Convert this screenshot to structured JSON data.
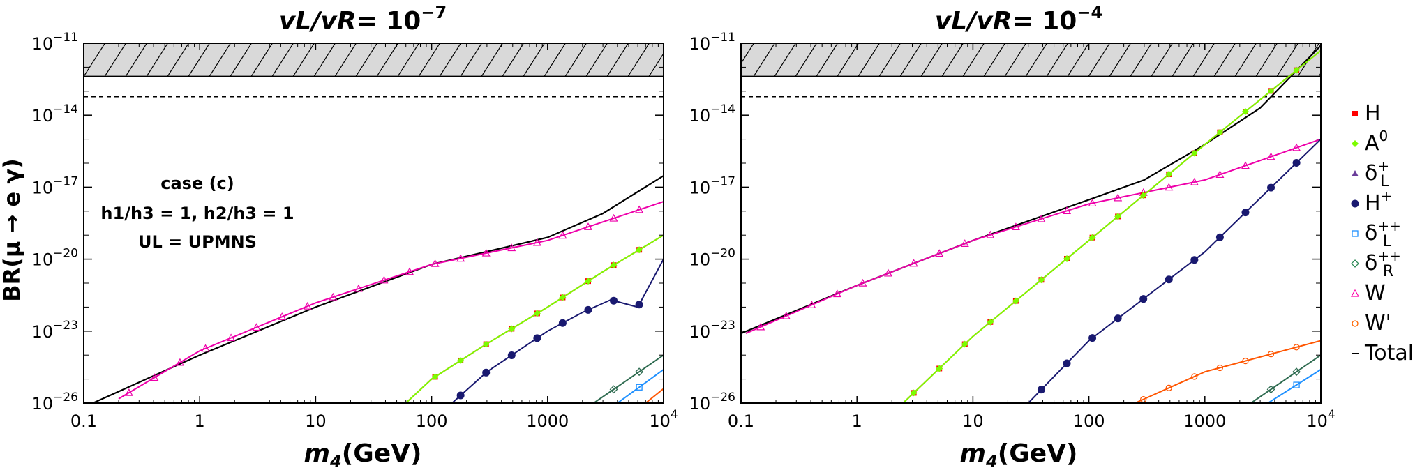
{
  "figure": {
    "ylabel": "BR(μ → e γ)",
    "xlabel_var": "m",
    "xlabel_sub": "4",
    "xlabel_unit": "(GeV)"
  },
  "annotation": {
    "line1": "case (c)",
    "line2": "h1/h3 = 1, h2/h3 = 1",
    "line3": "UL = UPMNS"
  },
  "legend": [
    {
      "label": "H",
      "color": "#ff0000",
      "marker": "square"
    },
    {
      "label": "A0",
      "color": "#7cfc00",
      "marker": "diamond"
    },
    {
      "label": "δL+",
      "color": "#6a3d9a",
      "marker": "triangle-filled"
    },
    {
      "label": "H+",
      "color": "#191970",
      "marker": "circle"
    },
    {
      "label": "δL++",
      "color": "#1e90ff",
      "marker": "square-open"
    },
    {
      "label": "δR++",
      "color": "#2e8b57",
      "marker": "diamond-open"
    },
    {
      "label": "W",
      "color": "#ff00aa",
      "marker": "triangle-open"
    },
    {
      "label": "W'",
      "color": "#ff6600",
      "marker": "circle-open"
    },
    {
      "label": "Total",
      "color": "#000000",
      "marker": "line"
    }
  ],
  "colors": {
    "H": "#ff0000",
    "A0": "#7cfc00",
    "H+": "#191970",
    "dLpp": "#1e90ff",
    "dRpp": "#2e6b50",
    "W": "#ee00aa",
    "Wp": "#ff5500",
    "Total": "#000000",
    "hatch": "#d9d9d9"
  },
  "chart_data": [
    {
      "type": "line",
      "title_main": "vL/vR",
      "title_eq": "= 10",
      "title_exp": "−7",
      "xlabel": "m4(GeV)",
      "ylabel": "BR(μ → e γ)",
      "xscale": "log",
      "yscale": "log",
      "xlim": [
        0.1,
        10000
      ],
      "ylim": [
        1e-26,
        1e-11
      ],
      "xticks": [
        "0.1",
        "1",
        "10",
        "100",
        "1000",
        "10^4"
      ],
      "yticks": [
        "10^-26",
        "10^-23",
        "10^-20",
        "10^-17",
        "10^-14",
        "10^-11"
      ],
      "excluded_band": [
        4.2e-13,
        1e-11
      ],
      "future_limit": 6e-14,
      "series": [
        {
          "key": "Total",
          "x": [
            0.12,
            1,
            10,
            100,
            1000,
            3000,
            10000
          ],
          "y": [
            1e-26,
            1e-24,
            1e-22,
            6e-21,
            8e-20,
            8e-19,
            3e-17
          ]
        },
        {
          "key": "W",
          "x": [
            0.2,
            1,
            10,
            100,
            1000,
            10000
          ],
          "y": [
            1.5e-26,
            1.5e-24,
            1.5e-22,
            6e-21,
            6e-20,
            2.5e-18
          ]
        },
        {
          "key": "H",
          "x": [
            60,
            100,
            300,
            1000,
            3000,
            10000
          ],
          "y": [
            1e-26,
            1e-25,
            3e-24,
            1e-22,
            3e-21,
            1e-19
          ]
        },
        {
          "key": "A0",
          "x": [
            60,
            100,
            300,
            1000,
            3000,
            10000
          ],
          "y": [
            1e-26,
            1e-25,
            3e-24,
            1e-22,
            3e-21,
            1e-19
          ]
        },
        {
          "key": "H+",
          "x": [
            150,
            300,
            1000,
            2000,
            3500,
            6000,
            10000
          ],
          "y": [
            1e-26,
            2e-25,
            1e-23,
            6e-23,
            2e-22,
            1e-22,
            1e-20
          ]
        },
        {
          "key": "dRpp",
          "x": [
            2500,
            10000
          ],
          "y": [
            1e-26,
            1e-24
          ]
        },
        {
          "key": "dLpp",
          "x": [
            4000,
            10000
          ],
          "y": [
            1e-26,
            2.5e-25
          ]
        },
        {
          "key": "Wp",
          "x": [
            7000,
            10000
          ],
          "y": [
            1e-26,
            4e-26
          ]
        }
      ]
    },
    {
      "type": "line",
      "title_main": "vL/vR",
      "title_eq": "= 10",
      "title_exp": "−4",
      "xlabel": "m4(GeV)",
      "ylabel": "",
      "xscale": "log",
      "yscale": "log",
      "xlim": [
        0.1,
        10000
      ],
      "ylim": [
        1e-26,
        1e-11
      ],
      "xticks": [
        "0.1",
        "1",
        "10",
        "100",
        "1000",
        "10^4"
      ],
      "yticks": [
        "10^-26",
        "10^-23",
        "10^-20",
        "10^-17",
        "10^-14",
        "10^-11"
      ],
      "excluded_band": [
        4.2e-13,
        1e-11
      ],
      "future_limit": 6e-14,
      "series": [
        {
          "key": "Total",
          "x": [
            0.1,
            1,
            10,
            100,
            300,
            1000,
            3000,
            10000
          ],
          "y": [
            8e-24,
            8e-22,
            6e-20,
            3e-18,
            2e-17,
            6e-16,
            2e-14,
            8e-12
          ]
        },
        {
          "key": "W",
          "x": [
            0.11,
            1,
            10,
            100,
            1000,
            10000
          ],
          "y": [
            8e-24,
            8e-22,
            6e-20,
            2e-18,
            2e-17,
            1e-15
          ]
        },
        {
          "key": "H",
          "x": [
            2.5,
            10,
            100,
            1000,
            10000
          ],
          "y": [
            1e-26,
            6e-24,
            6e-20,
            6e-16,
            5e-12
          ]
        },
        {
          "key": "A0",
          "x": [
            2.5,
            10,
            100,
            1000,
            10000
          ],
          "y": [
            1e-26,
            6e-24,
            6e-20,
            6e-16,
            5e-12
          ]
        },
        {
          "key": "H+",
          "x": [
            30,
            100,
            1000,
            10000
          ],
          "y": [
            1e-26,
            4e-24,
            2e-20,
            1e-15
          ]
        },
        {
          "key": "Wp",
          "x": [
            250,
            1000,
            10000
          ],
          "y": [
            1e-26,
            2e-25,
            4e-24
          ]
        },
        {
          "key": "dRpp",
          "x": [
            2500,
            10000
          ],
          "y": [
            1e-26,
            1e-24
          ]
        },
        {
          "key": "dLpp",
          "x": [
            3500,
            10000
          ],
          "y": [
            1e-26,
            2.5e-25
          ]
        }
      ]
    }
  ]
}
